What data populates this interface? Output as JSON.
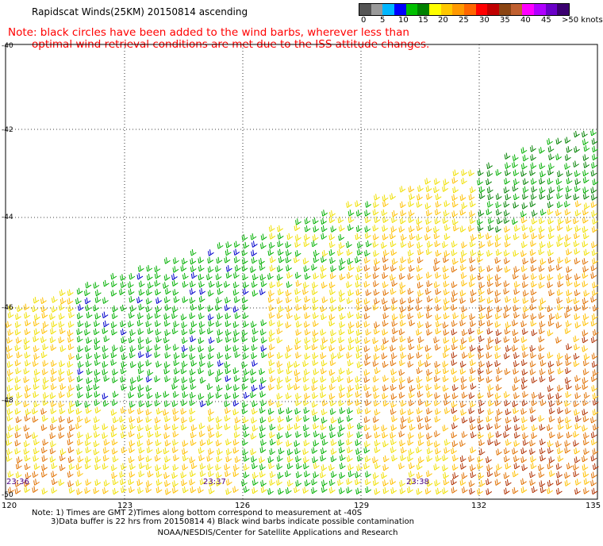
{
  "title": "Rapidscat Winds(25KM) 20150814 ascending",
  "note_lines": [
    "Note: black circles have been added to the wind barbs, wherever less than",
    "       optimal wind retrieval conditions are met due to the ISS attitude changes."
  ],
  "legend": {
    "colors": [
      "#555555",
      "#9a9a9a",
      "#00b7ff",
      "#0000ff",
      "#00c000",
      "#008000",
      "#ffff00",
      "#ffc800",
      "#ff9900",
      "#ff6600",
      "#ff0000",
      "#c00000",
      "#8b4513",
      "#c06030",
      "#ff00ff",
      "#b000ff",
      "#6a00c8",
      "#3b0070"
    ],
    "labels": [
      "0",
      "5",
      "10",
      "15",
      "20",
      "25",
      "30",
      "35",
      "40",
      "45",
      ">50 knots"
    ]
  },
  "map": {
    "lon_ticks": [
      "120",
      "123",
      "126",
      "129",
      "132",
      "135"
    ],
    "lat_ticks": [
      "-40",
      "-42",
      "-44",
      "-46",
      "-48",
      "-50"
    ],
    "time_labels": [
      "23:36",
      "23:37",
      "23:38"
    ]
  },
  "barb_colors": {
    "green": "#00b000",
    "dark_green": "#008000",
    "blue": "#0000cc",
    "yellow": "#f0e000",
    "gold": "#ffc000",
    "orange": "#e07000",
    "red_brown": "#b03000"
  },
  "footer": {
    "line1": "Note: 1) Times are GMT 2)Times along bottom correspond to measurement at -40S",
    "line2": "3)Data buffer is 22 hrs from 20150814 4) Black wind barbs indicate possible contamination",
    "line3": "NOAA/NESDIS/Center for Satellite Applications and Research"
  }
}
